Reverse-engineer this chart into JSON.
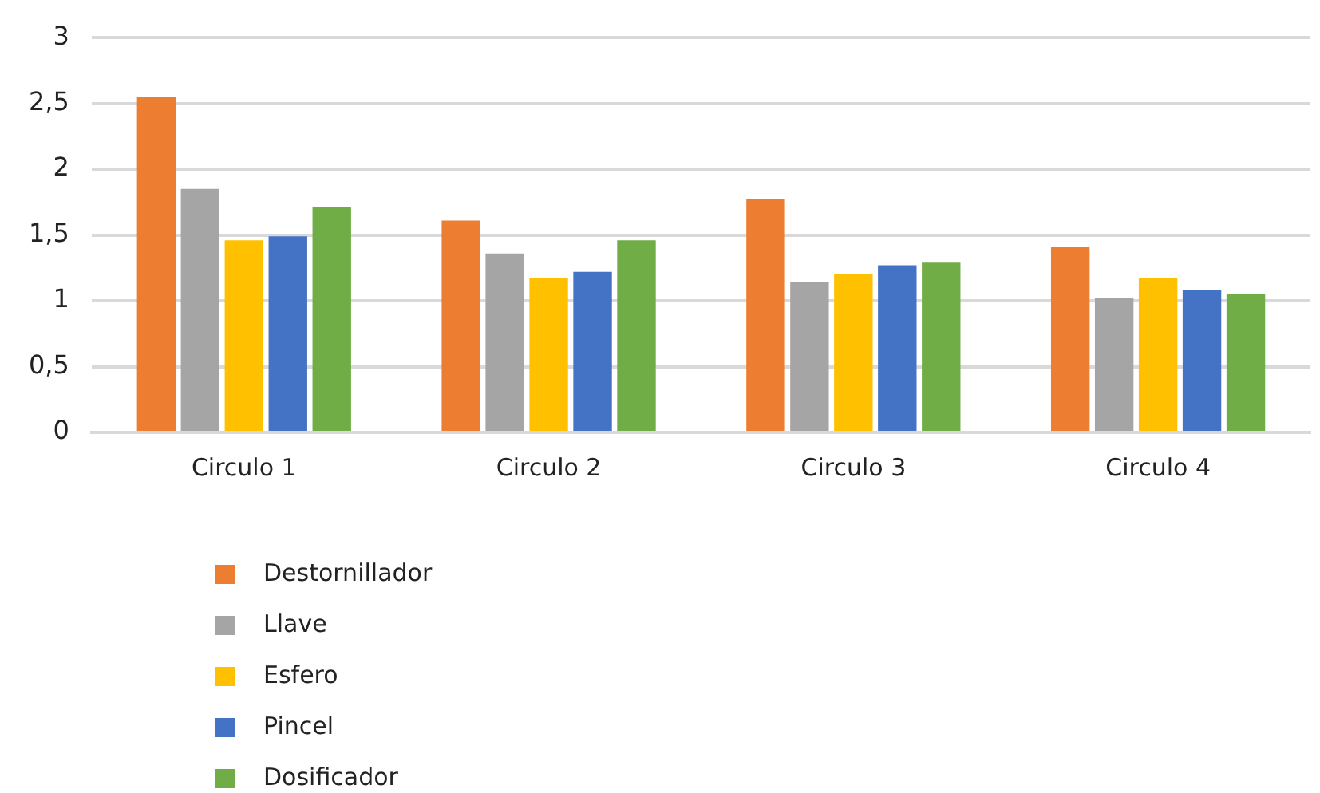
{
  "chart_data": {
    "type": "bar",
    "categories": [
      "Circulo 1",
      "Circulo 2",
      "Circulo 3",
      "Circulo 4"
    ],
    "series": [
      {
        "name": "Destornillador",
        "color": "#ed7d31",
        "values": [
          2.55,
          1.61,
          1.77,
          1.41
        ]
      },
      {
        "name": "Llave",
        "color": "#a5a5a5",
        "values": [
          1.85,
          1.36,
          1.14,
          1.02
        ]
      },
      {
        "name": "Esfero",
        "color": "#ffc000",
        "values": [
          1.46,
          1.17,
          1.2,
          1.17
        ]
      },
      {
        "name": "Pincel",
        "color": "#4472c4",
        "values": [
          1.49,
          1.22,
          1.27,
          1.08
        ]
      },
      {
        "name": "Dosificador",
        "color": "#70ad47",
        "values": [
          1.71,
          1.46,
          1.29,
          1.05
        ]
      }
    ],
    "ylim": [
      0,
      3
    ],
    "yticks": [
      0,
      {
        "value": 0.5,
        "label": "0,5"
      },
      1,
      {
        "value": 1.5,
        "label": "1,5"
      },
      2,
      {
        "value": 2.5,
        "label": "2,5"
      },
      3
    ],
    "grid": "y",
    "legend": "bottom left"
  }
}
